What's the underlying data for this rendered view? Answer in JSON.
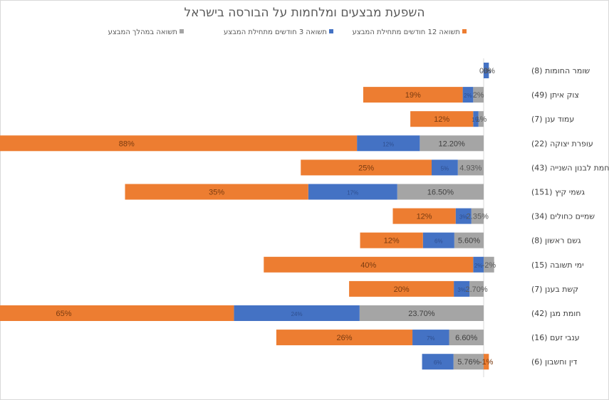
{
  "title": "השפעת מבצעים ומלחמות על הבורסה בישראל",
  "colors": {
    "s12": "#ED7D31",
    "s3": "#4472C4",
    "during": "#A5A5A5"
  },
  "chart_data": {
    "type": "bar",
    "orientation": "horizontal",
    "stacked": true,
    "title": "השפעת מבצעים ומלחמות על הבורסה בישראל",
    "categories": [
      "שומר החומות (8)",
      "צוק איתן (49)",
      "עמוד ענן (7)",
      "עופרת יצוקה (22)",
      "מלחמת לבנון השנייה (43)",
      "גשמי קיץ (151)",
      "שמיים כחולים (34)",
      "גשם ראשון (8)",
      "ימי תשובה (15)",
      "קשת בענן (7)",
      "חומת מגן (42)",
      "ענבי זעם (16)",
      "דין וחשבון (6)"
    ],
    "series": [
      {
        "name": "תשואה במהלך המבצע",
        "key": "during",
        "values": [
          0.0,
          2.0,
          1.0,
          12.2,
          4.93,
          16.5,
          2.35,
          5.6,
          -2.0,
          2.7,
          23.7,
          6.6,
          5.76
        ],
        "labels": [
          "0%",
          "2%",
          "1%",
          "12.20%",
          "4.93%",
          "16.50%",
          "2.35%",
          "5.60%",
          "-2%",
          "2.70%",
          "23.70%",
          "6.60%",
          "5.76%"
        ]
      },
      {
        "name": "תשואה 3 חודשים מתחילת המבצע",
        "key": "s3",
        "values": [
          -1.0,
          2.0,
          1.0,
          12.0,
          5.0,
          17.0,
          3.0,
          6.0,
          2.0,
          3.0,
          24.0,
          7.0,
          6.0
        ],
        "labels": [
          "-1%",
          "2%",
          "1%",
          "12%",
          "5%",
          "17%",
          "3%",
          "6%",
          "2%",
          "3%",
          "24%",
          "7%",
          "6%"
        ]
      },
      {
        "name": "תשואה 12 חודשים מתחילת המבצע",
        "key": "s12",
        "values": [
          0.0,
          19.0,
          12.0,
          88.0,
          25.0,
          35.0,
          12.0,
          12.0,
          40.0,
          20.0,
          65.0,
          26.0,
          -1.0
        ],
        "labels": [
          "0%",
          "19%",
          "12%",
          "88%",
          "25%",
          "35%",
          "12%",
          "12%",
          "40%",
          "20%",
          "65%",
          "26%",
          "-1%"
        ]
      }
    ],
    "legend_position": "top",
    "legend_order": [
      "during",
      "s3",
      "s12"
    ],
    "grid": false
  }
}
